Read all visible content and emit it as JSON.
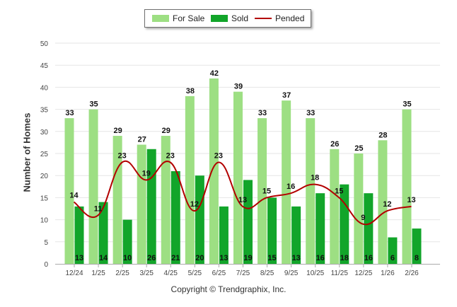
{
  "chart_data": {
    "type": "bar",
    "title": "",
    "xlabel": "",
    "ylabel": "Number of Homes",
    "ylim": [
      0,
      50
    ],
    "yticks": [
      "0",
      "5",
      "10",
      "15",
      "20",
      "25",
      "30",
      "35",
      "40",
      "45",
      "50"
    ],
    "grid": true,
    "legend_position": "top-center",
    "categories": [
      "12/24",
      "1/25",
      "2/25",
      "3/25",
      "4/25",
      "5/25",
      "6/25",
      "7/25",
      "8/25",
      "9/25",
      "10/25",
      "11/25",
      "12/25",
      "1/26",
      "2/26"
    ],
    "series": [
      {
        "name": "For Sale",
        "kind": "bar",
        "color": "#9ddf83",
        "values": [
          33,
          35,
          29,
          27,
          29,
          38,
          42,
          39,
          33,
          37,
          33,
          26,
          25,
          28,
          35
        ]
      },
      {
        "name": "Sold",
        "kind": "bar",
        "color": "#12a52a",
        "values": [
          13,
          14,
          10,
          26,
          21,
          20,
          13,
          19,
          15,
          13,
          16,
          18,
          16,
          6,
          8
        ]
      },
      {
        "name": "Pended",
        "kind": "line",
        "color": "#b30000",
        "values": [
          14,
          11,
          23,
          19,
          23,
          12,
          23,
          13,
          15,
          16,
          18,
          15,
          9,
          12,
          13
        ]
      }
    ]
  },
  "footer": {
    "copyright": "Copyright © Trendgraphix, Inc."
  }
}
